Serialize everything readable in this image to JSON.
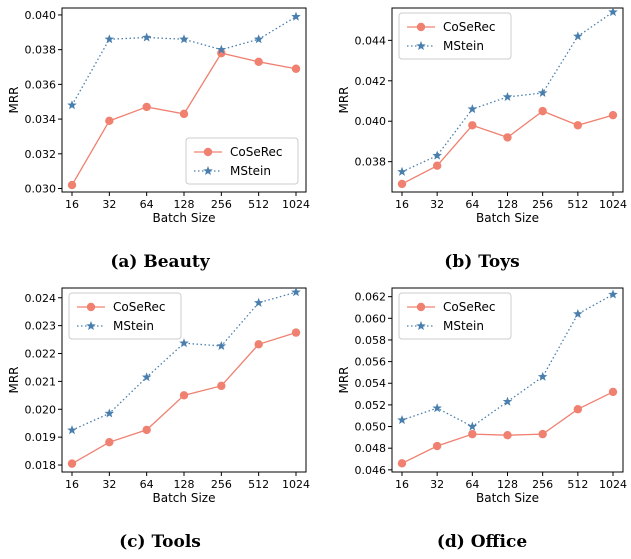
{
  "legend": {
    "series1": "CoSeRec",
    "series2": "MStein"
  },
  "colors": {
    "coserec": "#f08070",
    "mstein": "#4a7fad"
  },
  "chart_data": [
    {
      "type": "line",
      "caption": "(a) Beauty",
      "xlabel": "Batch Size",
      "ylabel": "MRR",
      "categories": [
        "16",
        "32",
        "64",
        "128",
        "256",
        "512",
        "1024"
      ],
      "ylim": [
        0.0298,
        0.0404
      ],
      "yticks": [
        0.03,
        0.032,
        0.034,
        0.036,
        0.038,
        0.04
      ],
      "ytick_labels": [
        "0.030",
        "0.032",
        "0.034",
        "0.036",
        "0.038",
        "0.040"
      ],
      "legend_position": "lower-right",
      "series": [
        {
          "name": "CoSeRec",
          "values": [
            0.0302,
            0.0339,
            0.0347,
            0.0343,
            0.0378,
            0.0373,
            0.0369
          ]
        },
        {
          "name": "MStein",
          "values": [
            0.0348,
            0.0386,
            0.0387,
            0.0386,
            0.038,
            0.0386,
            0.0399
          ]
        }
      ]
    },
    {
      "type": "line",
      "caption": "(b) Toys",
      "xlabel": "Batch Size",
      "ylabel": "MRR",
      "categories": [
        "16",
        "32",
        "64",
        "128",
        "256",
        "512",
        "1024"
      ],
      "ylim": [
        0.0365,
        0.0456
      ],
      "yticks": [
        0.038,
        0.04,
        0.042,
        0.044
      ],
      "ytick_labels": [
        "0.038",
        "0.040",
        "0.042",
        "0.044"
      ],
      "legend_position": "upper-left",
      "series": [
        {
          "name": "CoSeRec",
          "values": [
            0.0369,
            0.0378,
            0.0398,
            0.0392,
            0.0405,
            0.0398,
            0.0403
          ]
        },
        {
          "name": "MStein",
          "values": [
            0.0375,
            0.0383,
            0.0406,
            0.0412,
            0.0414,
            0.0442,
            0.0454
          ]
        }
      ]
    },
    {
      "type": "line",
      "caption": "(c) Tools",
      "xlabel": "Batch Size",
      "ylabel": "MRR",
      "categories": [
        "16",
        "32",
        "64",
        "128",
        "256",
        "512",
        "1024"
      ],
      "ylim": [
        0.01775,
        0.02435
      ],
      "yticks": [
        0.018,
        0.019,
        0.02,
        0.021,
        0.022,
        0.023,
        0.024
      ],
      "ytick_labels": [
        "0.018",
        "0.019",
        "0.020",
        "0.021",
        "0.022",
        "0.023",
        "0.024"
      ],
      "legend_position": "upper-left",
      "series": [
        {
          "name": "CoSeRec",
          "values": [
            0.01805,
            0.01882,
            0.01926,
            0.0205,
            0.02084,
            0.02233,
            0.02275
          ]
        },
        {
          "name": "MStein",
          "values": [
            0.01925,
            0.01985,
            0.02115,
            0.02237,
            0.02227,
            0.02382,
            0.0242
          ]
        }
      ]
    },
    {
      "type": "line",
      "caption": "(d) Office",
      "xlabel": "Batch Size",
      "ylabel": "MRR",
      "categories": [
        "16",
        "32",
        "64",
        "128",
        "256",
        "512",
        "1024"
      ],
      "ylim": [
        0.0458,
        0.0628
      ],
      "yticks": [
        0.046,
        0.048,
        0.05,
        0.052,
        0.054,
        0.056,
        0.058,
        0.06,
        0.062
      ],
      "ytick_labels": [
        "0.046",
        "0.048",
        "0.050",
        "0.052",
        "0.054",
        "0.056",
        "0.058",
        "0.060",
        "0.062"
      ],
      "legend_position": "upper-left",
      "series": [
        {
          "name": "CoSeRec",
          "values": [
            0.0466,
            0.0482,
            0.0493,
            0.0492,
            0.0493,
            0.0516,
            0.0532
          ]
        },
        {
          "name": "MStein",
          "values": [
            0.0506,
            0.0517,
            0.05,
            0.0523,
            0.0546,
            0.0604,
            0.0622
          ]
        }
      ]
    }
  ]
}
